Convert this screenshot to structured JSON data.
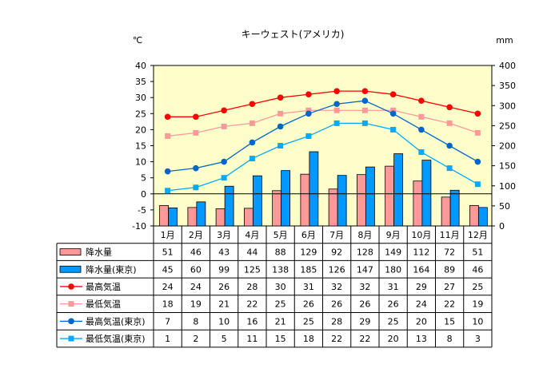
{
  "chart_data": {
    "type": "bar+line",
    "title": "キーウェスト(アメリカ)",
    "left_unit": "℃",
    "right_unit": "mm",
    "ylim_left": [
      -10,
      40
    ],
    "yticks_left": [
      "40",
      "35",
      "30",
      "25",
      "20",
      "15",
      "10",
      "5",
      "0",
      "-5",
      "-10"
    ],
    "ylim_right": [
      0,
      400
    ],
    "yticks_right": [
      "400",
      "350",
      "300",
      "250",
      "200",
      "150",
      "100",
      "50",
      "0"
    ],
    "plot_background": "#ffffcc",
    "categories": [
      "1月",
      "2月",
      "3月",
      "4月",
      "5月",
      "6月",
      "7月",
      "8月",
      "9月",
      "10月",
      "11月",
      "12月"
    ],
    "series": [
      {
        "name": "降水量",
        "kind": "bar",
        "axis": "right",
        "color": "#ff9999",
        "values": [
          51,
          46,
          43,
          44,
          88,
          129,
          92,
          128,
          149,
          112,
          72,
          51
        ]
      },
      {
        "name": "降水量(東京)",
        "kind": "bar",
        "axis": "right",
        "color": "#0099ff",
        "values": [
          45,
          60,
          99,
          125,
          138,
          185,
          126,
          147,
          180,
          164,
          89,
          46
        ]
      },
      {
        "name": "最高気温",
        "kind": "line",
        "axis": "left",
        "color": "#ff0000",
        "marker": "circle",
        "values": [
          24,
          24,
          26,
          28,
          30,
          31,
          32,
          32,
          31,
          29,
          27,
          25
        ]
      },
      {
        "name": "最低気温",
        "kind": "line",
        "axis": "left",
        "color": "#ff9999",
        "marker": "square",
        "values": [
          18,
          19,
          21,
          22,
          25,
          26,
          26,
          26,
          26,
          24,
          22,
          19
        ]
      },
      {
        "name": "最高気温(東京)",
        "kind": "line",
        "axis": "left",
        "color": "#0066cc",
        "marker": "circle",
        "values": [
          7,
          8,
          10,
          16,
          21,
          25,
          28,
          29,
          25,
          20,
          15,
          10
        ]
      },
      {
        "name": "最低気温(東京)",
        "kind": "line",
        "axis": "left",
        "color": "#00aaff",
        "marker": "square",
        "values": [
          1,
          2,
          5,
          11,
          15,
          18,
          22,
          22,
          20,
          13,
          8,
          3
        ]
      }
    ]
  }
}
